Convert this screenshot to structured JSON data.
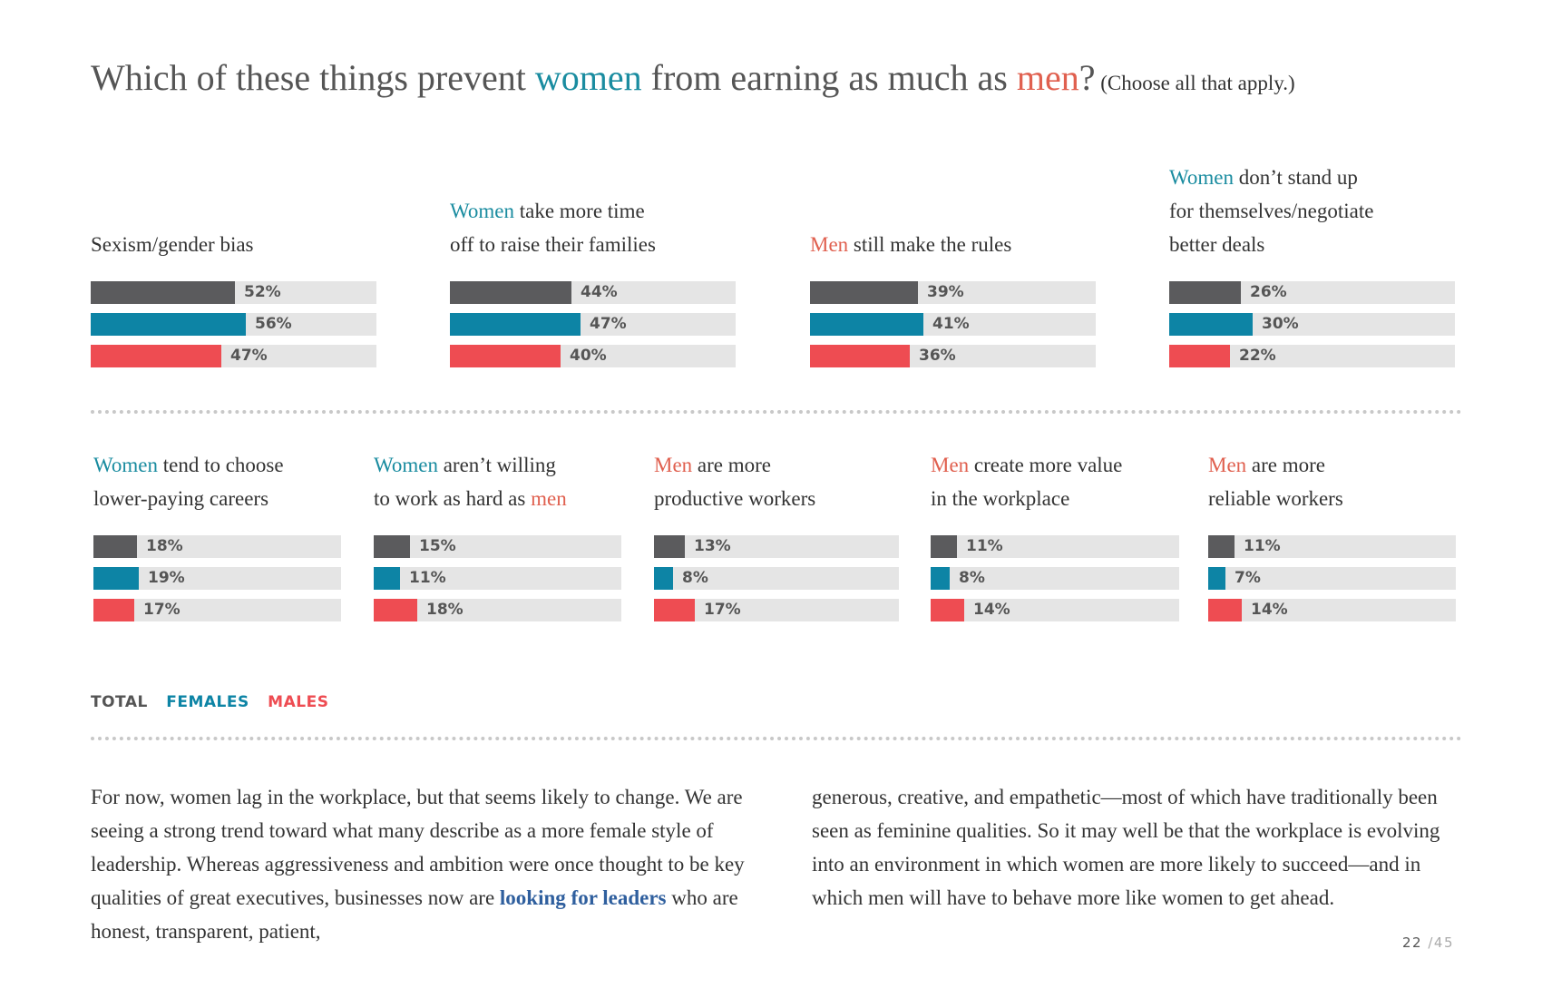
{
  "title": {
    "pre": "Which of these things prevent ",
    "women": "women",
    "mid": " from earning as much as ",
    "men": "men",
    "q": "?",
    "sub": " (Choose all that apply.)"
  },
  "colors": {
    "total": "#5b5b5d",
    "females": "#0d84a5",
    "males": "#ee4c52",
    "track": "#e5e5e5",
    "women_word": "#1a8ca0",
    "men_word": "#e0604f"
  },
  "chart_data": [
    {
      "type": "bar",
      "label": [
        [
          "",
          "Sexism/gender bias"
        ]
      ],
      "series": [
        {
          "name": "TOTAL",
          "values": [
            52
          ]
        },
        {
          "name": "FEMALES",
          "values": [
            56
          ]
        },
        {
          "name": "MALES",
          "values": [
            47
          ]
        }
      ]
    },
    {
      "type": "bar",
      "label": [
        [
          "Women",
          " take more time"
        ],
        [
          "",
          "off to raise their families"
        ]
      ],
      "series": [
        {
          "name": "TOTAL",
          "values": [
            44
          ]
        },
        {
          "name": "FEMALES",
          "values": [
            47
          ]
        },
        {
          "name": "MALES",
          "values": [
            40
          ]
        }
      ]
    },
    {
      "type": "bar",
      "label": [
        [
          "Men",
          " still make the rules"
        ]
      ],
      "series": [
        {
          "name": "TOTAL",
          "values": [
            39
          ]
        },
        {
          "name": "FEMALES",
          "values": [
            41
          ]
        },
        {
          "name": "MALES",
          "values": [
            36
          ]
        }
      ]
    },
    {
      "type": "bar",
      "label": [
        [
          "Women",
          " don’t stand up"
        ],
        [
          "",
          "for themselves/negotiate"
        ],
        [
          "",
          "better deals"
        ]
      ],
      "series": [
        {
          "name": "TOTAL",
          "values": [
            26
          ]
        },
        {
          "name": "FEMALES",
          "values": [
            30
          ]
        },
        {
          "name": "MALES",
          "values": [
            22
          ]
        }
      ]
    },
    {
      "type": "bar",
      "label": [
        [
          "Women",
          " tend to choose"
        ],
        [
          "",
          "lower-paying careers"
        ]
      ],
      "series": [
        {
          "name": "TOTAL",
          "values": [
            18
          ]
        },
        {
          "name": "FEMALES",
          "values": [
            19
          ]
        },
        {
          "name": "MALES",
          "values": [
            17
          ]
        }
      ]
    },
    {
      "type": "bar",
      "label": [
        [
          "Women",
          " aren’t willing"
        ],
        [
          "",
          "to work as hard as "
        ],
        [
          "men",
          ""
        ]
      ],
      "series": [
        {
          "name": "TOTAL",
          "values": [
            15
          ]
        },
        {
          "name": "FEMALES",
          "values": [
            11
          ]
        },
        {
          "name": "MALES",
          "values": [
            18
          ]
        }
      ]
    },
    {
      "type": "bar",
      "label": [
        [
          "Men",
          " are more"
        ],
        [
          "",
          "productive workers"
        ]
      ],
      "series": [
        {
          "name": "TOTAL",
          "values": [
            13
          ]
        },
        {
          "name": "FEMALES",
          "values": [
            8
          ]
        },
        {
          "name": "MALES",
          "values": [
            17
          ]
        }
      ]
    },
    {
      "type": "bar",
      "label": [
        [
          "Men",
          " create more value"
        ],
        [
          "",
          "in the workplace"
        ]
      ],
      "series": [
        {
          "name": "TOTAL",
          "values": [
            11
          ]
        },
        {
          "name": "FEMALES",
          "values": [
            8
          ]
        },
        {
          "name": "MALES",
          "values": [
            14
          ]
        }
      ]
    },
    {
      "type": "bar",
      "label": [
        [
          "Men",
          " are more"
        ],
        [
          "",
          "reliable workers"
        ]
      ],
      "series": [
        {
          "name": "TOTAL",
          "values": [
            11
          ]
        },
        {
          "name": "FEMALES",
          "values": [
            7
          ]
        },
        {
          "name": "MALES",
          "values": [
            14
          ]
        }
      ]
    }
  ],
  "legend": {
    "total": "TOTAL",
    "females": "FEMALES",
    "males": "MALES"
  },
  "body": {
    "col1_pre": "For now, women lag in the workplace, but that seems likely to change. We are seeing a strong trend toward what many describe as a more female style of leadership. Whereas aggressiveness and ambition were once thought to be key qualities of great executives, businesses now are ",
    "col1_link": "looking for leaders",
    "col1_post": " who are honest, transparent, patient,",
    "col2": "generous, creative, and empathetic—most of which have traditionally been seen as feminine qualities. So it may well be that the workplace is evolving into an environment in which women are more likely to succeed—and in which men will have to behave more like women to get ahead."
  },
  "page": {
    "current": "22",
    "total": "/45"
  }
}
